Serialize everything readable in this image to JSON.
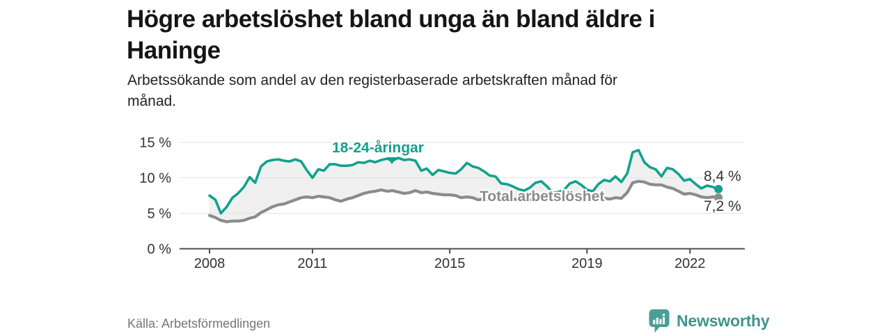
{
  "header": {
    "title": "Högre arbetslöshet bland unga än bland äldre i\nHaninge",
    "subtitle": "Arbetssökande som andel av den registerbaserade arbetskraften månad för\nmånad."
  },
  "footer": {
    "source": "Källa: Arbetsförmedlingen",
    "brand_name": "Newsworthy"
  },
  "colors": {
    "young_series": "#12a18d",
    "total_series": "#8b8b8b",
    "band_fill": "#f0f0f0",
    "gridline": "#e2e2e2",
    "axis": "#4d4d4d",
    "tick_text": "#333333",
    "brand_teal": "#3f948c"
  },
  "chart_data": {
    "type": "line",
    "title": "Högre arbetslöshet bland unga än bland äldre i Haninge",
    "subtitle": "Arbetssökande som andel av den registerbaserade arbetskraften månad för månad.",
    "xlabel": "",
    "ylabel": "",
    "x_unit": "year (monthly data)",
    "y_unit": "percent",
    "ylim": [
      0,
      15
    ],
    "grid": true,
    "legend_position": "inline-labels",
    "yticks": [
      {
        "value": 0,
        "label": "0 %"
      },
      {
        "value": 5,
        "label": "5 %"
      },
      {
        "value": 10,
        "label": "10 %"
      },
      {
        "value": 15,
        "label": "15 %"
      }
    ],
    "xticks": [
      {
        "value": 2008,
        "label": "2008"
      },
      {
        "value": 2011,
        "label": "2011"
      },
      {
        "value": 2015,
        "label": "2015"
      },
      {
        "value": 2019,
        "label": "2019"
      },
      {
        "value": 2022,
        "label": "2022"
      }
    ],
    "x": [
      2008,
      2008.17,
      2008.33,
      2008.5,
      2008.67,
      2008.83,
      2009,
      2009.17,
      2009.33,
      2009.5,
      2009.67,
      2009.83,
      2010,
      2010.17,
      2010.33,
      2010.5,
      2010.67,
      2010.83,
      2011,
      2011.17,
      2011.33,
      2011.5,
      2011.67,
      2011.83,
      2012,
      2012.17,
      2012.33,
      2012.5,
      2012.67,
      2012.83,
      2013,
      2013.17,
      2013.33,
      2013.5,
      2013.67,
      2013.83,
      2014,
      2014.17,
      2014.33,
      2014.5,
      2014.67,
      2014.83,
      2015,
      2015.17,
      2015.33,
      2015.5,
      2015.67,
      2015.83,
      2016,
      2016.17,
      2016.33,
      2016.5,
      2016.67,
      2016.83,
      2017,
      2017.17,
      2017.33,
      2017.5,
      2017.67,
      2017.83,
      2018,
      2018.17,
      2018.33,
      2018.5,
      2018.67,
      2018.83,
      2019,
      2019.17,
      2019.33,
      2019.5,
      2019.67,
      2019.83,
      2020,
      2020.17,
      2020.33,
      2020.5,
      2020.67,
      2020.83,
      2021,
      2021.17,
      2021.33,
      2021.5,
      2021.67,
      2021.83,
      2022,
      2022.17,
      2022.33,
      2022.5,
      2022.67,
      2022.83
    ],
    "series": [
      {
        "name": "18-24-åringar",
        "color": "#12a18d",
        "end_value": 8.4,
        "end_label": "8,4 %",
        "values": [
          7.5,
          6.9,
          5.0,
          5.9,
          7.2,
          7.8,
          8.7,
          10.1,
          9.3,
          11.6,
          12.3,
          12.5,
          12.6,
          12.4,
          12.3,
          12.6,
          12.3,
          11.1,
          10.0,
          11.2,
          11.0,
          11.9,
          11.9,
          11.7,
          11.7,
          11.8,
          12.2,
          12.1,
          12.4,
          12.2,
          12.5,
          12.7,
          12.4,
          12.8,
          12.5,
          12.6,
          12.4,
          11.0,
          11.3,
          10.4,
          11.1,
          10.9,
          10.7,
          10.6,
          11.2,
          12.1,
          11.6,
          11.4,
          10.9,
          10.3,
          10.2,
          9.2,
          9.1,
          8.8,
          8.4,
          8.2,
          8.6,
          9.3,
          9.5,
          8.8,
          7.9,
          8.0,
          8.3,
          9.2,
          9.5,
          9.0,
          8.3,
          8.1,
          9.1,
          9.7,
          9.5,
          10.2,
          9.4,
          10.6,
          13.6,
          13.9,
          12.2,
          11.5,
          11.2,
          10.2,
          11.4,
          11.2,
          10.5,
          9.6,
          9.8,
          9.1,
          8.5,
          8.9,
          8.7,
          8.4
        ]
      },
      {
        "name": "Total arbetslöshet",
        "color": "#8b8b8b",
        "end_value": 7.2,
        "end_label": "7,2 %",
        "values": [
          4.7,
          4.4,
          4.0,
          3.8,
          3.9,
          3.9,
          4.0,
          4.3,
          4.5,
          5.1,
          5.5,
          5.9,
          6.2,
          6.3,
          6.6,
          6.9,
          7.2,
          7.3,
          7.2,
          7.4,
          7.3,
          7.2,
          6.9,
          6.7,
          7.0,
          7.2,
          7.5,
          7.8,
          8.0,
          8.1,
          8.3,
          8.1,
          8.2,
          8.0,
          7.8,
          7.9,
          8.2,
          7.9,
          8.0,
          7.8,
          7.7,
          7.6,
          7.6,
          7.5,
          7.2,
          7.3,
          7.2,
          6.9,
          7.0,
          6.9,
          7.0,
          6.8,
          6.9,
          7.0,
          6.9,
          6.8,
          6.9,
          7.0,
          6.9,
          6.8,
          6.8,
          6.9,
          6.8,
          7.0,
          7.1,
          7.0,
          7.0,
          7.1,
          7.2,
          7.1,
          7.0,
          7.2,
          7.1,
          7.9,
          9.3,
          9.5,
          9.4,
          9.1,
          9.0,
          9.0,
          8.7,
          8.5,
          8.1,
          7.7,
          7.8,
          7.6,
          7.3,
          7.2,
          7.3,
          7.2
        ]
      }
    ]
  }
}
